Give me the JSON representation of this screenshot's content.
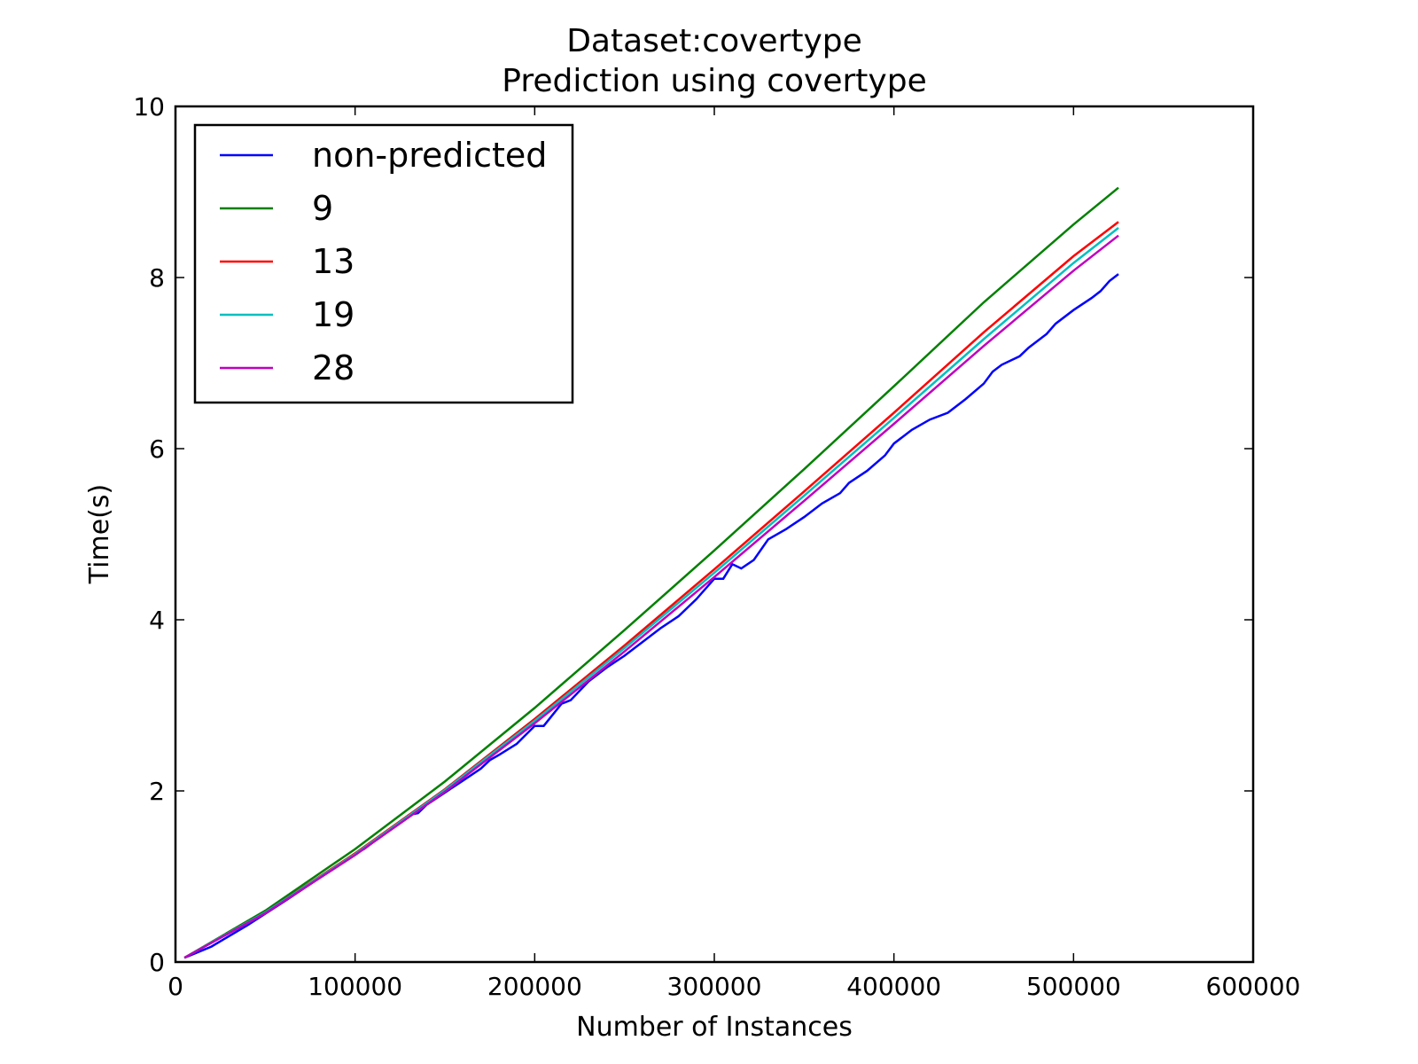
{
  "chart_data": {
    "type": "line",
    "title": "Dataset:covertype",
    "subtitle": "Prediction using covertype",
    "xlabel": "Number of Instances",
    "ylabel": "Time(s)",
    "xlim": [
      0,
      600000
    ],
    "ylim": [
      0,
      10
    ],
    "xticks": [
      0,
      100000,
      200000,
      300000,
      400000,
      500000,
      600000
    ],
    "xtick_labels": [
      "0",
      "100000",
      "200000",
      "300000",
      "400000",
      "500000",
      "600000"
    ],
    "yticks": [
      0,
      2,
      4,
      6,
      8,
      10
    ],
    "ytick_labels": [
      "0",
      "2",
      "4",
      "6",
      "8",
      "10"
    ],
    "grid": false,
    "legend_position": "top-left",
    "series": [
      {
        "name": "non-predicted",
        "color": "#0000ff",
        "points": [
          [
            5000,
            0.05
          ],
          [
            20000,
            0.18
          ],
          [
            40000,
            0.43
          ],
          [
            60000,
            0.7
          ],
          [
            80000,
            0.98
          ],
          [
            100000,
            1.27
          ],
          [
            105000,
            1.32
          ],
          [
            110000,
            1.4
          ],
          [
            120000,
            1.55
          ],
          [
            130000,
            1.72
          ],
          [
            135000,
            1.74
          ],
          [
            140000,
            1.84
          ],
          [
            150000,
            1.98
          ],
          [
            160000,
            2.12
          ],
          [
            170000,
            2.26
          ],
          [
            175000,
            2.36
          ],
          [
            180000,
            2.42
          ],
          [
            190000,
            2.55
          ],
          [
            200000,
            2.76
          ],
          [
            205000,
            2.76
          ],
          [
            215000,
            3.02
          ],
          [
            220000,
            3.06
          ],
          [
            230000,
            3.28
          ],
          [
            240000,
            3.44
          ],
          [
            250000,
            3.58
          ],
          [
            260000,
            3.74
          ],
          [
            270000,
            3.9
          ],
          [
            280000,
            4.04
          ],
          [
            290000,
            4.24
          ],
          [
            300000,
            4.48
          ],
          [
            305000,
            4.48
          ],
          [
            310000,
            4.65
          ],
          [
            315000,
            4.6
          ],
          [
            322000,
            4.7
          ],
          [
            330000,
            4.94
          ],
          [
            340000,
            5.06
          ],
          [
            350000,
            5.2
          ],
          [
            360000,
            5.36
          ],
          [
            370000,
            5.48
          ],
          [
            375000,
            5.6
          ],
          [
            385000,
            5.74
          ],
          [
            395000,
            5.92
          ],
          [
            400000,
            6.06
          ],
          [
            410000,
            6.22
          ],
          [
            420000,
            6.34
          ],
          [
            430000,
            6.42
          ],
          [
            440000,
            6.58
          ],
          [
            450000,
            6.76
          ],
          [
            455000,
            6.9
          ],
          [
            460000,
            6.98
          ],
          [
            470000,
            7.08
          ],
          [
            475000,
            7.18
          ],
          [
            485000,
            7.34
          ],
          [
            490000,
            7.46
          ],
          [
            500000,
            7.62
          ],
          [
            510000,
            7.76
          ],
          [
            515000,
            7.84
          ],
          [
            520000,
            7.96
          ],
          [
            525000,
            8.04
          ]
        ]
      },
      {
        "name": "9",
        "color": "#008000",
        "points": [
          [
            5000,
            0.05
          ],
          [
            50000,
            0.6
          ],
          [
            100000,
            1.32
          ],
          [
            150000,
            2.11
          ],
          [
            200000,
            2.97
          ],
          [
            250000,
            3.88
          ],
          [
            300000,
            4.81
          ],
          [
            350000,
            5.76
          ],
          [
            400000,
            6.73
          ],
          [
            450000,
            7.71
          ],
          [
            500000,
            8.62
          ],
          [
            525000,
            9.05
          ]
        ]
      },
      {
        "name": "13",
        "color": "#ff0000",
        "points": [
          [
            5000,
            0.05
          ],
          [
            50000,
            0.58
          ],
          [
            100000,
            1.27
          ],
          [
            150000,
            2.02
          ],
          [
            200000,
            2.84
          ],
          [
            250000,
            3.7
          ],
          [
            300000,
            4.59
          ],
          [
            350000,
            5.5
          ],
          [
            400000,
            6.42
          ],
          [
            450000,
            7.36
          ],
          [
            500000,
            8.25
          ],
          [
            525000,
            8.65
          ]
        ]
      },
      {
        "name": "19",
        "color": "#00bfbf",
        "points": [
          [
            5000,
            0.05
          ],
          [
            50000,
            0.58
          ],
          [
            100000,
            1.26
          ],
          [
            150000,
            2.01
          ],
          [
            200000,
            2.82
          ],
          [
            250000,
            3.67
          ],
          [
            300000,
            4.55
          ],
          [
            350000,
            5.45
          ],
          [
            400000,
            6.36
          ],
          [
            450000,
            7.28
          ],
          [
            500000,
            8.17
          ],
          [
            525000,
            8.58
          ]
        ]
      },
      {
        "name": "28",
        "color": "#bf00bf",
        "points": [
          [
            5000,
            0.05
          ],
          [
            50000,
            0.57
          ],
          [
            100000,
            1.25
          ],
          [
            150000,
            1.99
          ],
          [
            200000,
            2.79
          ],
          [
            250000,
            3.63
          ],
          [
            300000,
            4.5
          ],
          [
            350000,
            5.39
          ],
          [
            400000,
            6.29
          ],
          [
            450000,
            7.2
          ],
          [
            500000,
            8.08
          ],
          [
            525000,
            8.49
          ]
        ]
      }
    ]
  }
}
